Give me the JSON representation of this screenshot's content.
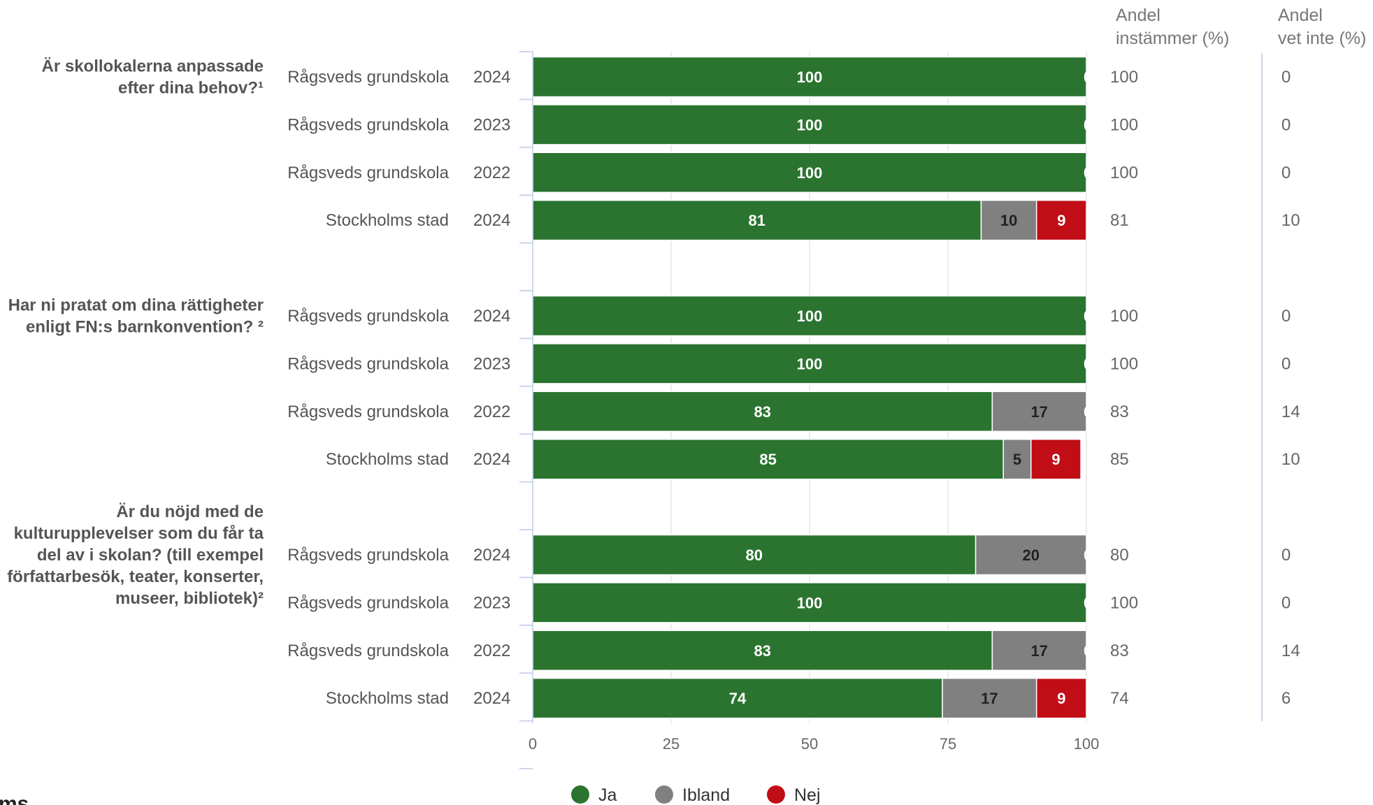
{
  "chart_data": {
    "type": "bar",
    "orientation": "horizontal",
    "stacked": true,
    "xlim": [
      0,
      100
    ],
    "xticks": [
      "0",
      "25",
      "50",
      "75",
      "100"
    ],
    "grid": true,
    "legend": {
      "position": "bottom",
      "entries": [
        "Ja",
        "Ibland",
        "Nej"
      ]
    },
    "series": [
      {
        "name": "Ja",
        "color": "#2a7430"
      },
      {
        "name": "Ibland",
        "color": "#808080"
      },
      {
        "name": "Nej",
        "color": "#c00d16"
      }
    ],
    "column_headers": [
      [
        "Andel",
        "instämmer (%)"
      ],
      [
        "Andel",
        "vet inte (%)"
      ]
    ],
    "groups": [
      {
        "question": [
          "Är skollokalerna anpassade",
          "efter dina behov?¹"
        ],
        "rows": [
          {
            "unit": "Rågsveds grundskola",
            "year": "2024",
            "values": [
              100,
              0,
              0
            ],
            "andel_instammer": "100",
            "andel_vet_inte": "0"
          },
          {
            "unit": "Rågsveds grundskola",
            "year": "2023",
            "values": [
              100,
              0,
              0
            ],
            "andel_instammer": "100",
            "andel_vet_inte": "0"
          },
          {
            "unit": "Rågsveds grundskola",
            "year": "2022",
            "values": [
              100,
              0,
              0
            ],
            "andel_instammer": "100",
            "andel_vet_inte": "0"
          },
          {
            "unit": "Stockholms stad",
            "year": "2024",
            "values": [
              81,
              10,
              9
            ],
            "andel_instammer": "81",
            "andel_vet_inte": "10"
          }
        ]
      },
      {
        "question": [
          "Har ni pratat om dina rättigheter",
          "enligt FN:s barnkonvention? ²"
        ],
        "rows": [
          {
            "unit": "Rågsveds grundskola",
            "year": "2024",
            "values": [
              100,
              0,
              0
            ],
            "andel_instammer": "100",
            "andel_vet_inte": "0"
          },
          {
            "unit": "Rågsveds grundskola",
            "year": "2023",
            "values": [
              100,
              0,
              0
            ],
            "andel_instammer": "100",
            "andel_vet_inte": "0"
          },
          {
            "unit": "Rågsveds grundskola",
            "year": "2022",
            "values": [
              83,
              17,
              0
            ],
            "andel_instammer": "83",
            "andel_vet_inte": "14"
          },
          {
            "unit": "Stockholms stad",
            "year": "2024",
            "values": [
              85,
              5,
              9
            ],
            "andel_instammer": "85",
            "andel_vet_inte": "10"
          }
        ]
      },
      {
        "question": [
          "Är du nöjd med de",
          "kulturupplevelser som du får ta",
          "del av i skolan? (till exempel",
          "författarbesök, teater, konserter,",
          "museer, bibliotek)²"
        ],
        "rows": [
          {
            "unit": "Rågsveds grundskola",
            "year": "2024",
            "values": [
              80,
              20,
              0
            ],
            "andel_instammer": "80",
            "andel_vet_inte": "0"
          },
          {
            "unit": "Rågsveds grundskola",
            "year": "2023",
            "values": [
              100,
              0,
              0
            ],
            "andel_instammer": "100",
            "andel_vet_inte": "0"
          },
          {
            "unit": "Rågsveds grundskola",
            "year": "2022",
            "values": [
              83,
              17,
              0
            ],
            "andel_instammer": "83",
            "andel_vet_inte": "14"
          },
          {
            "unit": "Stockholms stad",
            "year": "2024",
            "values": [
              74,
              17,
              9
            ],
            "andel_instammer": "74",
            "andel_vet_inte": "6"
          }
        ]
      }
    ]
  },
  "footer_fragment": "ms"
}
